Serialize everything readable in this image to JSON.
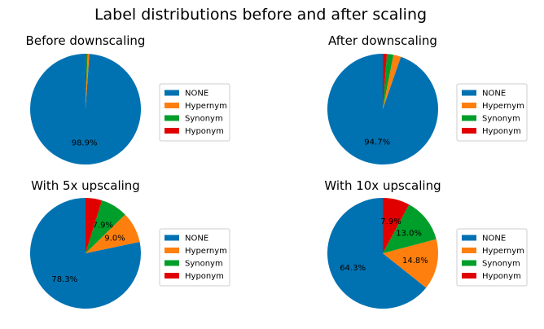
{
  "figure": {
    "title": "Label distributions before and after scaling"
  },
  "colors": {
    "NONE": "#0072b2",
    "Hypernym": "#ff7f0e",
    "Synonym": "#009e2a",
    "Hyponym": "#e00000",
    "legend_border": "#cccccc"
  },
  "chart_data": [
    {
      "type": "pie",
      "title": "Before downscaling",
      "labels": [
        "NONE",
        "Hypernym",
        "Synonym",
        "Hyponym"
      ],
      "values": [
        98.9,
        0.5,
        0.4,
        0.2
      ],
      "value_labels": [
        "98.9%",
        "",
        "",
        ""
      ],
      "start_angle_deg": 90,
      "direction": "counterclockwise",
      "legend_position": "right"
    },
    {
      "type": "pie",
      "title": "After downscaling",
      "labels": [
        "NONE",
        "Hypernym",
        "Synonym",
        "Hyponym"
      ],
      "values": [
        94.7,
        2.2,
        1.9,
        1.2
      ],
      "value_labels": [
        "94.7%",
        "",
        "",
        ""
      ],
      "start_angle_deg": 90,
      "direction": "counterclockwise",
      "legend_position": "right"
    },
    {
      "type": "pie",
      "title": "With 5x upscaling",
      "labels": [
        "NONE",
        "Hypernym",
        "Synonym",
        "Hyponym"
      ],
      "values": [
        78.3,
        9.0,
        7.9,
        4.8
      ],
      "value_labels": [
        "78.3%",
        "9.0%",
        "7.9%",
        ""
      ],
      "start_angle_deg": 90,
      "direction": "counterclockwise",
      "legend_position": "right"
    },
    {
      "type": "pie",
      "title": "With 10x upscaling",
      "labels": [
        "NONE",
        "Hypernym",
        "Synonym",
        "Hyponym"
      ],
      "values": [
        64.3,
        14.8,
        13.0,
        7.9
      ],
      "value_labels": [
        "64.3%",
        "14.8%",
        "13.0%",
        "7.9%"
      ],
      "start_angle_deg": 90,
      "direction": "counterclockwise",
      "legend_position": "right"
    }
  ]
}
